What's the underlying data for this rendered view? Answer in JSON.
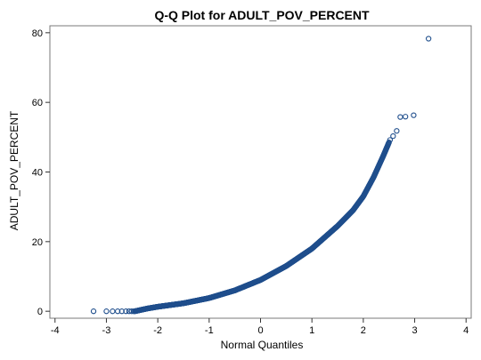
{
  "chart_data": {
    "type": "scatter",
    "title": "Q-Q Plot for ADULT_POV_PERCENT",
    "xlabel": "Normal Quantiles",
    "ylabel": "ADULT_POV_PERCENT",
    "xlim": [
      -4.1,
      4.1
    ],
    "ylim": [
      -2,
      82
    ],
    "xticks": [
      -4,
      -3,
      -2,
      -1,
      0,
      1,
      2,
      3,
      4
    ],
    "yticks": [
      0,
      20,
      40,
      60,
      80
    ],
    "grid": false,
    "legend": "none",
    "marker": "open-circle",
    "marker_color": "#1f4e8c",
    "curve_knots": [
      [
        -2.45,
        0.0
      ],
      [
        -2.2,
        0.8
      ],
      [
        -2.0,
        1.3
      ],
      [
        -1.5,
        2.3
      ],
      [
        -1.0,
        3.8
      ],
      [
        -0.5,
        6.0
      ],
      [
        0.0,
        9.0
      ],
      [
        0.5,
        13.0
      ],
      [
        1.0,
        18.0
      ],
      [
        1.5,
        24.5
      ],
      [
        1.8,
        29.0
      ],
      [
        2.0,
        33.0
      ],
      [
        2.2,
        38.5
      ],
      [
        2.4,
        45.0
      ],
      [
        2.5,
        48.5
      ]
    ],
    "extreme_points": [
      [
        -3.25,
        0.0
      ],
      [
        -3.0,
        0.0
      ],
      [
        -2.88,
        0.0
      ],
      [
        -2.78,
        0.0
      ],
      [
        -2.7,
        0.0
      ],
      [
        -2.62,
        0.0
      ],
      [
        -2.56,
        0.0
      ],
      [
        -2.51,
        0.0
      ],
      [
        -2.47,
        0.0
      ],
      [
        2.52,
        49.2
      ],
      [
        2.58,
        50.3
      ],
      [
        2.65,
        51.8
      ],
      [
        2.72,
        55.8
      ],
      [
        2.82,
        55.9
      ],
      [
        2.98,
        56.3
      ],
      [
        3.27,
        78.3
      ]
    ]
  }
}
